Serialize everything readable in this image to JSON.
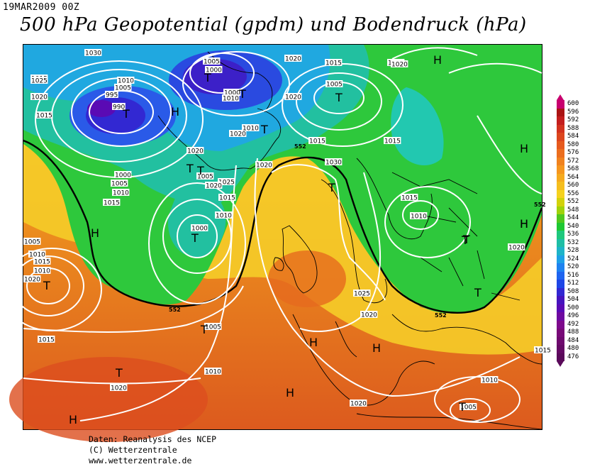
{
  "header": {
    "date": "19MAR2009 00Z",
    "title": "500 hPa Geopotential (gpdm) und Bodendruck (hPa)"
  },
  "legend": {
    "values": [
      "600",
      "596",
      "592",
      "588",
      "584",
      "580",
      "576",
      "572",
      "568",
      "564",
      "560",
      "556",
      "552",
      "548",
      "544",
      "540",
      "536",
      "532",
      "528",
      "524",
      "520",
      "516",
      "512",
      "508",
      "504",
      "500",
      "496",
      "492",
      "488",
      "484",
      "480",
      "476"
    ],
    "colors": [
      "#c8006e",
      "#aa1414",
      "#c31e1e",
      "#d2321e",
      "#dc461e",
      "#e65a1e",
      "#eb6e1e",
      "#f0821e",
      "#f5961e",
      "#f5aa1e",
      "#f5be1e",
      "#f5d21e",
      "#d2d20a",
      "#a0d20a",
      "#50c81e",
      "#1ec832",
      "#1ec87d",
      "#1ebea5",
      "#1eb4c8",
      "#1ea0e6",
      "#1e82f0",
      "#1e64f0",
      "#1e46e6",
      "#3228d2",
      "#4614be",
      "#5a0ab4",
      "#6e0aa0",
      "#7d0a8c",
      "#780a78",
      "#6e0a6e",
      "#640a64",
      "#5a0a5a"
    ]
  },
  "map": {
    "pressure_labels": [
      "1030",
      "1015",
      "1005",
      "1000",
      "1020",
      "1025",
      "1020",
      "1010",
      "1005",
      "995",
      "990",
      "1000",
      "1015",
      "1015",
      "1005",
      "1010",
      "1015",
      "1005",
      "1015",
      "1020",
      "1020",
      "1010",
      "1020",
      "1015",
      "1020",
      "1000",
      "1005",
      "1010",
      "1015",
      "1025",
      "1030",
      "1020",
      "1020",
      "1015",
      "1010",
      "1000",
      "1005",
      "1010",
      "1015",
      "1010",
      "1020",
      "1005",
      "1015",
      "1010",
      "1025",
      "1020",
      "1020",
      "1020",
      "1010",
      "1005",
      "1015",
      "1010",
      "1020",
      "1015"
    ],
    "centers": [
      "T",
      "T",
      "T",
      "H",
      "T",
      "T",
      "T",
      "H",
      "T",
      "T",
      "H",
      "T",
      "T",
      "H",
      "H",
      "H",
      "T",
      "T",
      "H",
      "T",
      "T",
      "T",
      "T",
      "H",
      "H",
      "H"
    ],
    "contour_labels": [
      "552",
      "552",
      "552",
      "552"
    ]
  },
  "credits": {
    "line1": "Daten: Reanalysis des NCEP",
    "line2": "(C) Wetterzentrale",
    "line3": "www.wetterzentrale.de"
  }
}
